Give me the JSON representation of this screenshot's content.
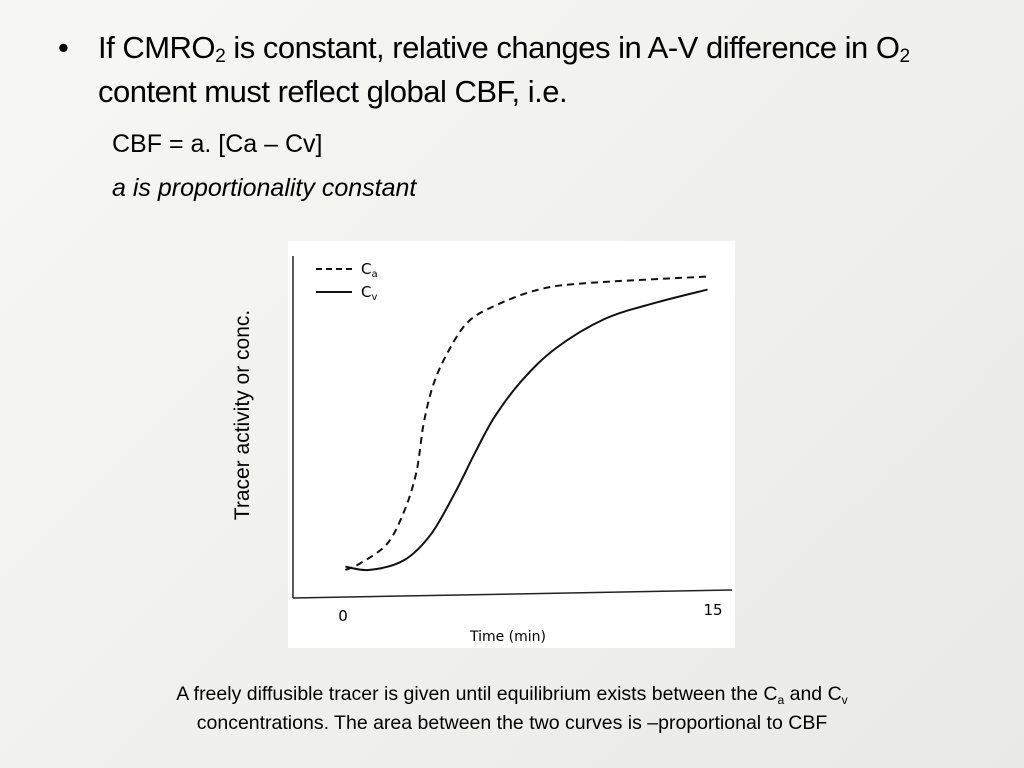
{
  "bullet": {
    "part1": "If CMRO",
    "sub1": "2",
    "part2": " is constant, relative changes in A-V difference in O",
    "sub2": "2",
    "part3": " content must reflect global CBF, i.e."
  },
  "formula": "CBF = a. [Ca – Cv]",
  "formula_note": "a is proportionality constant",
  "caption": {
    "part1": "A freely diffusible tracer is given until equilibrium exists between the C",
    "sub_a": "a",
    "part2": " and C",
    "sub_v": "v",
    "part3": " concentrations. The area between the two curves is –proportional to CBF"
  },
  "chart_data": {
    "type": "line",
    "title": "",
    "xlabel": "Time (min)",
    "ylabel": "Tracer activity or conc.",
    "xlim": [
      0,
      15
    ],
    "ylim": [
      0,
      1
    ],
    "xticks": [
      "0",
      "15"
    ],
    "grid": false,
    "legend_placement": "top-left",
    "series": [
      {
        "name": "Ca",
        "legend_main": "C",
        "legend_sub": "a",
        "style": "dashed",
        "x": [
          0.1,
          0.7,
          1.8,
          2.5,
          3.0,
          3.3,
          3.7,
          4.3,
          5.1,
          6.2,
          8.0,
          10.0,
          14.9
        ],
        "y": [
          0.08,
          0.1,
          0.16,
          0.26,
          0.38,
          0.53,
          0.65,
          0.75,
          0.84,
          0.89,
          0.94,
          0.96,
          0.98
        ]
      },
      {
        "name": "Cv",
        "legend_main": "C",
        "legend_sub": "v",
        "style": "solid",
        "x": [
          0.1,
          1.1,
          2.5,
          3.6,
          4.6,
          5.4,
          6.2,
          7.3,
          8.7,
          10.7,
          12.8,
          14.9
        ],
        "y": [
          0.09,
          0.08,
          0.11,
          0.19,
          0.32,
          0.44,
          0.55,
          0.66,
          0.76,
          0.85,
          0.9,
          0.94
        ]
      }
    ]
  }
}
